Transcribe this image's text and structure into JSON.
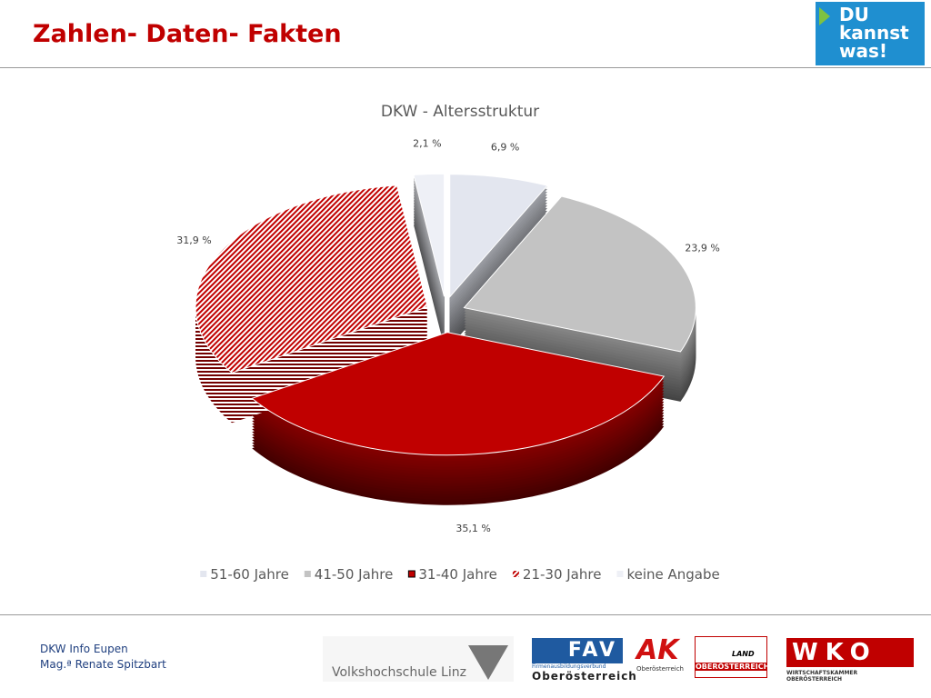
{
  "header": {
    "title": "Zahlen- Daten- Fakten",
    "logo": [
      "DU",
      "kannst",
      "was!"
    ]
  },
  "chart_data": {
    "type": "pie",
    "title": "DKW - Altersstruktur",
    "categories": [
      "51-60 Jahre",
      "41-50 Jahre",
      "31-40 Jahre",
      "21-30 Jahre",
      "keine Angabe"
    ],
    "values": [
      6.9,
      23.9,
      35.1,
      31.9,
      2.1
    ],
    "value_labels": [
      "6,9 %",
      "23,9 %",
      "35,1 %",
      "31,9 %",
      "2,1 %"
    ],
    "colors": [
      "#e3e6ef",
      "#c3c3c3",
      "#c00000",
      "#c00000",
      "#eef0f6"
    ],
    "hatch": [
      false,
      false,
      false,
      true,
      false
    ]
  },
  "footer": {
    "lines": [
      "DKW Info Eupen",
      "Mag.ª Renate Spitzbart"
    ],
    "vhs": "Volkshochschule Linz",
    "fav": [
      "FAV",
      "Firmenausbildungsverbund",
      "Oberösterreich"
    ],
    "ak": [
      "AK",
      "Oberösterreich"
    ],
    "land": [
      "LAND",
      "OBERÖSTERREICH"
    ],
    "wko": [
      "WKO",
      "WIRTSCHAFTSKAMMER OBERÖSTERREICH"
    ]
  }
}
